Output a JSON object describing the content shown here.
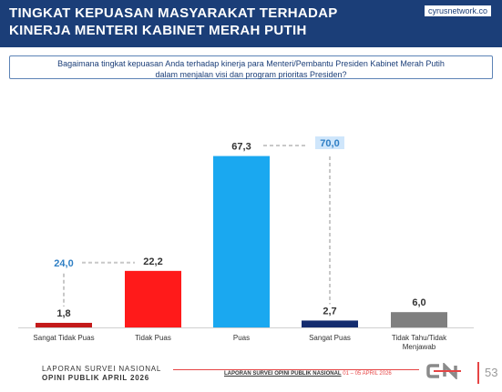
{
  "header": {
    "title_line1": "TINGKAT KEPUASAN MASYARAKAT TERHADAP",
    "title_line2": "KINERJA MENTERI KABINET MERAH PUTIH",
    "brand": "cyrusnetwork.co"
  },
  "question": {
    "line1": "Bagaimana tingkat kepuasan Anda terhadap kinerja para Menteri/Pembantu Presiden Kabinet Merah Putih",
    "line2": "dalam menjalan visi dan program prioritas Presiden?"
  },
  "chart_data": {
    "type": "bar",
    "categories": [
      "Sangat Tidak Puas",
      "Tidak Puas",
      "Puas",
      "Sangat Puas",
      "Tidak Tahu/Tidak Menjawab"
    ],
    "values": [
      1.8,
      22.2,
      67.3,
      2.7,
      6.0
    ],
    "value_labels": [
      "1,8",
      "22,2",
      "67,3",
      "2,7",
      "6,0"
    ],
    "bar_colors": [
      "#c41a1a",
      "#ff1a1a",
      "#1aa8f0",
      "#142c6e",
      "#7f7f7f"
    ],
    "ylim": [
      0,
      75
    ],
    "annotations": [
      {
        "label": "24,0",
        "value": 24.0,
        "spans": [
          0,
          1
        ],
        "color": "#2f7fc4"
      },
      {
        "label": "70,0",
        "value": 70.0,
        "spans": [
          2,
          3
        ],
        "color": "#2f7fc4"
      }
    ],
    "grid": false
  },
  "footer": {
    "line1": "LAPORAN SURVEI NASIONAL",
    "line2": "OPINI PUBLIK APRIL 2026",
    "center_bold": "LAPORAN SURVEI OPINI PUBLIK NASIONAL",
    "center_dates": "01 – 05 APRIL 2026",
    "page": "53"
  }
}
